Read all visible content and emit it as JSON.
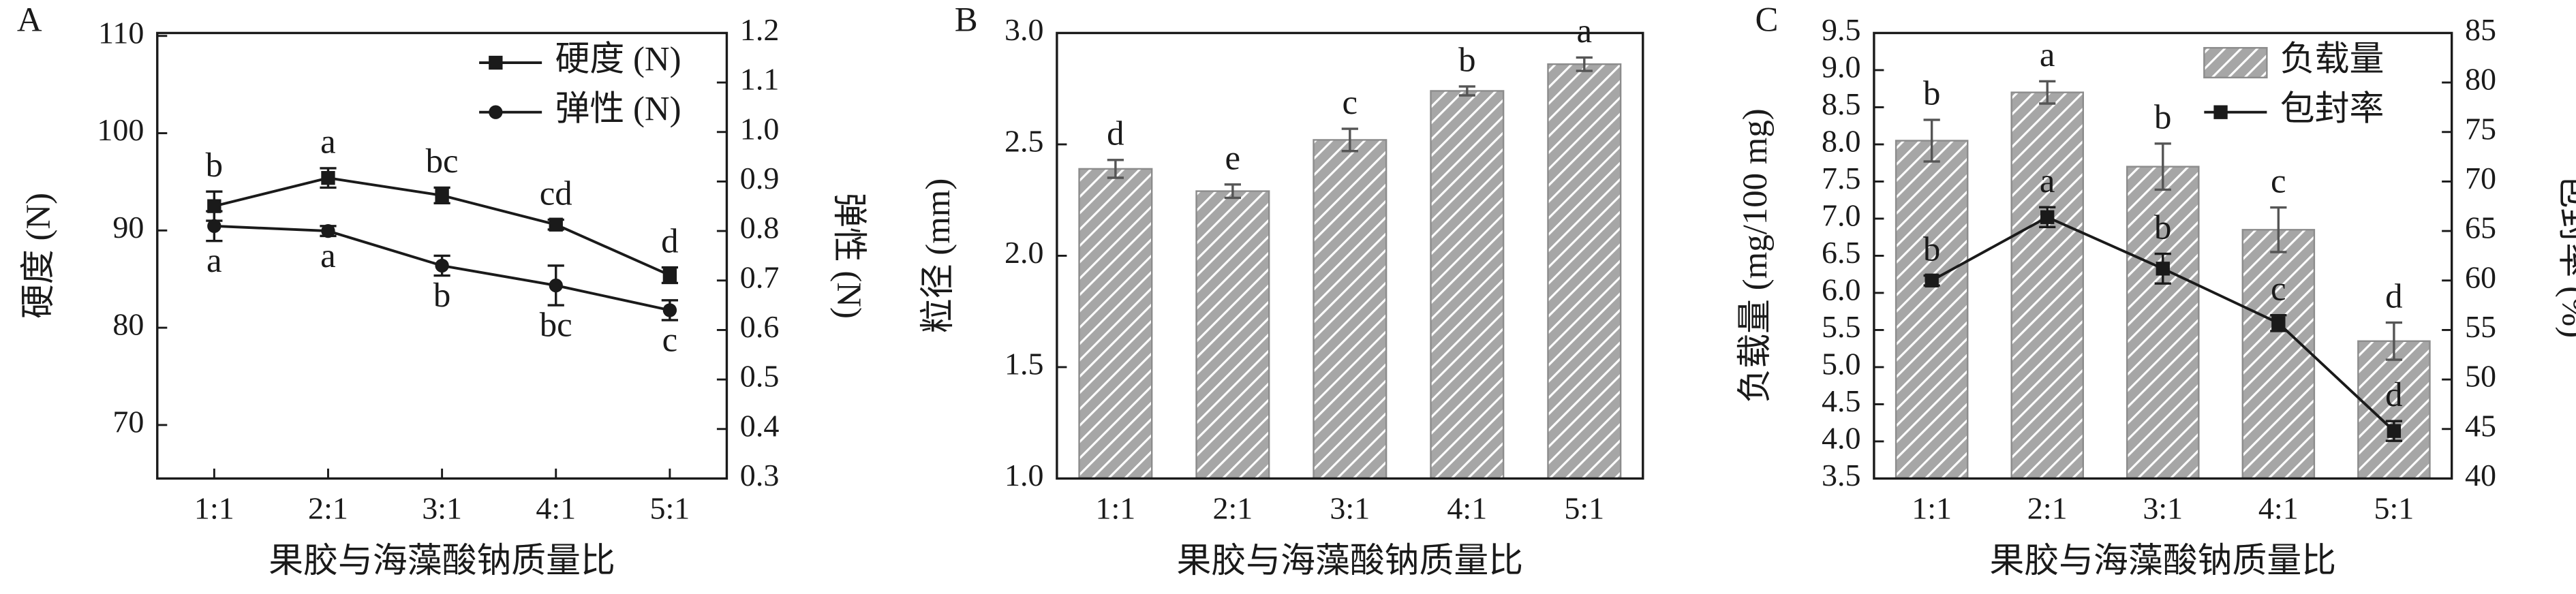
{
  "chart_data": [
    {
      "type": "line",
      "panel": "A",
      "categories": [
        "1:1",
        "2:1",
        "3:1",
        "4:1",
        "5:1"
      ],
      "xlabel": "果胶与海藻酸钠质量比",
      "ylabel": "硬度 (N)",
      "y2label": "弹性 (N)",
      "ylim": [
        64.5,
        110.3
      ],
      "yticks": [
        70,
        80,
        90,
        100,
        110
      ],
      "y2lim": [
        0.3,
        1.2
      ],
      "y2ticks": [
        0.3,
        0.4,
        0.5,
        0.6,
        0.7,
        0.8,
        0.9,
        {
          "value": 1,
          "label": "1.0"
        },
        1.1,
        1.2
      ],
      "legend": "upper right",
      "series": [
        {
          "name": "硬度 (N)",
          "color": "#1a1a1a",
          "marker": "square",
          "values": [
            92.5,
            95.4,
            93.6,
            90.6,
            85.4
          ],
          "errors": [
            1.5,
            1.0,
            0.8,
            0.5,
            0.8
          ],
          "letters": [
            "b",
            "a",
            "bc",
            "cd",
            "d"
          ],
          "letter_position": "above"
        },
        {
          "name": "弹性 (N)",
          "color": "#1a1a1a",
          "marker": "circle",
          "axis": "y2",
          "values": [
            0.81,
            0.8,
            0.73,
            0.69,
            0.64
          ],
          "errors": [
            0.03,
            0.01,
            0.02,
            0.04,
            0.02
          ],
          "letters": [
            "a",
            "a",
            "b",
            "bc",
            "c"
          ],
          "letter_position": "below"
        }
      ]
    },
    {
      "type": "bar",
      "panel": "B",
      "categories": [
        "1:1",
        "2:1",
        "3:1",
        "4:1",
        "5:1"
      ],
      "xlabel": "果胶与海藻酸钠质量比",
      "ylabel": "粒径 (mm)",
      "ylim": [
        1,
        3
      ],
      "yticks": [
        {
          "value": 1,
          "label": "1.0"
        },
        1.5,
        {
          "value": 2,
          "label": "2.0"
        },
        2.5,
        {
          "value": 3,
          "label": "3.0"
        }
      ],
      "series": [
        {
          "color": "#a6a6a6",
          "hatch": true,
          "values": [
            2.39,
            2.29,
            2.52,
            2.74,
            2.86
          ],
          "errors": [
            0.04,
            0.03,
            0.05,
            0.02,
            0.03
          ],
          "letters": [
            "d",
            "e",
            "c",
            "b",
            "a"
          ],
          "letter_position": "above"
        }
      ]
    },
    {
      "type": "bar",
      "panel": "C",
      "categories": [
        "1:1",
        "2:1",
        "3:1",
        "4:1",
        "5:1"
      ],
      "xlabel": "果胶与海藻酸钠质量比",
      "ylabel": "负载量 (mg/100 mg)",
      "y2label": "包封率 (%)",
      "ylim": [
        3.5,
        9.5
      ],
      "yticks": [
        3.5,
        {
          "value": 4,
          "label": "4.0"
        },
        4.5,
        {
          "value": 5,
          "label": "5.0"
        },
        5.5,
        {
          "value": 6,
          "label": "6.0"
        },
        6.5,
        {
          "value": 7,
          "label": "7.0"
        },
        7.5,
        {
          "value": 8,
          "label": "8.0"
        },
        8.5,
        {
          "value": 9,
          "label": "9.0"
        },
        9.5
      ],
      "y2lim": [
        40,
        85
      ],
      "y2ticks": [
        40,
        45,
        50,
        55,
        60,
        65,
        70,
        75,
        80,
        85
      ],
      "legend": "upper right",
      "series": [
        {
          "name": "负载量",
          "color": "#a6a6a6",
          "hatch": true,
          "values": [
            8.05,
            8.7,
            7.7,
            6.85,
            5.35
          ],
          "errors": [
            0.28,
            0.15,
            0.31,
            0.3,
            0.25
          ],
          "letters": [
            "b",
            "a",
            "b",
            "c",
            "d"
          ],
          "letter_position": "above"
        },
        {
          "name": "包封率",
          "type": "line",
          "axis": "y2",
          "color": "#1a1a1a",
          "marker": "square",
          "values": [
            60,
            66.4,
            61.2,
            55.7,
            44.8
          ],
          "errors": [
            0.5,
            1.0,
            1.5,
            0.8,
            1.0
          ],
          "letters": [
            "b",
            "a",
            "b",
            "c",
            "d"
          ],
          "letter_position": "above"
        }
      ]
    }
  ]
}
